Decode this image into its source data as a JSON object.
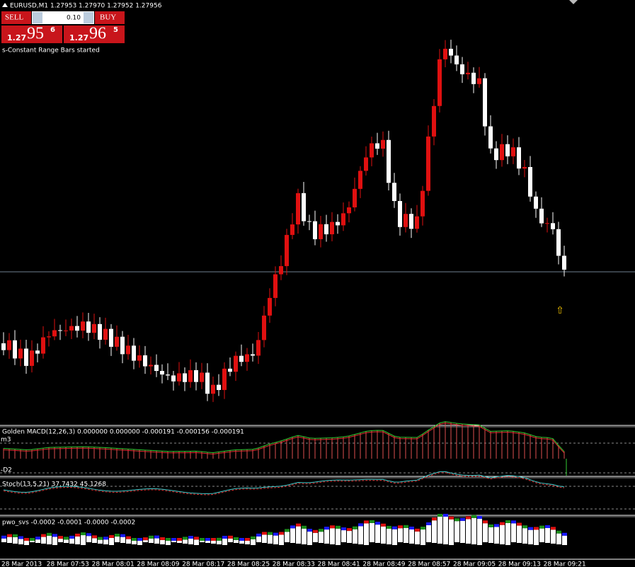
{
  "header": {
    "symbol": "EURUSD,M1  1.27953 1.27970 1.27952 1.27956"
  },
  "trade_panel": {
    "sell": "SELL",
    "lot": "0.10",
    "buy": "BUY",
    "sell_price": {
      "big": "1.27",
      "main": "95",
      "small": "6"
    },
    "buy_price": {
      "big": "1.27",
      "main": "96",
      "small": "5"
    }
  },
  "status": "s-Constant Range Bars started",
  "indicators": {
    "macd": {
      "label": "Golden MACD(12,26,3) 0.000000 0.000000 -0.000191 -0.000156 -0.000191",
      "upper": "m3",
      "lower": "-D2"
    },
    "stoch": {
      "label": "Stoch(13,5,21) 37.7432 45.1268"
    },
    "pwo": {
      "label": "pwo_svs -0.0002 -0.0001 -0.0000 -0.0002"
    }
  },
  "time_axis": [
    "28 Mar 2013",
    "28 Mar 07:53",
    "28 Mar 08:01",
    "28 Mar 08:09",
    "28 Mar 08:17",
    "28 Mar 08:25",
    "28 Mar 08:33",
    "28 Mar 08:41",
    "28 Mar 08:49",
    "28 Mar 08:57",
    "28 Mar 09:05",
    "28 Mar 09:13",
    "28 Mar 09:21"
  ]
}
